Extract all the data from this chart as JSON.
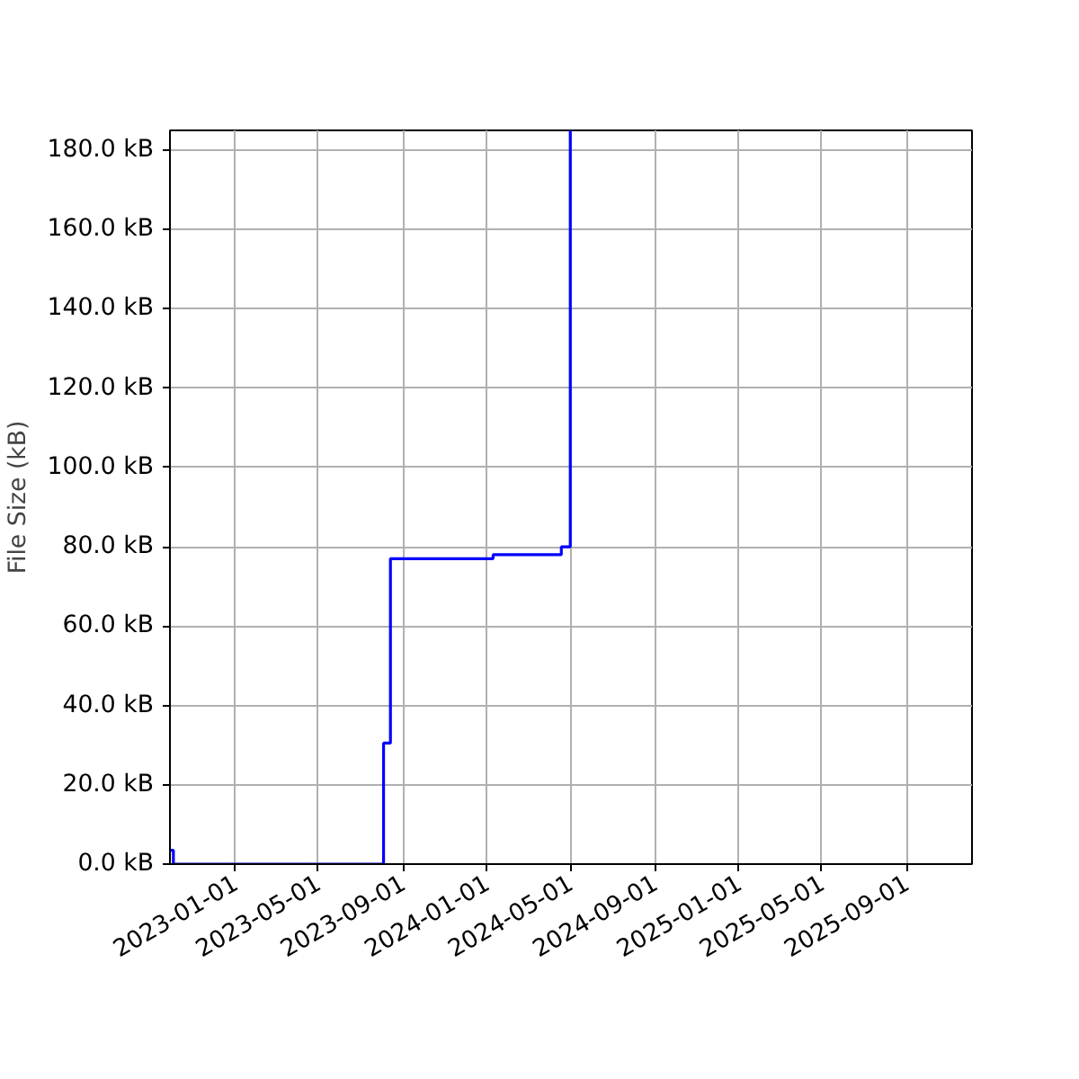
{
  "chart_data": {
    "type": "step",
    "ylabel": "File Size (kB)",
    "x": [
      "2022-09-28",
      "2022-10-03",
      "2023-08-04",
      "2023-08-14",
      "2024-01-10",
      "2024-04-18",
      "2024-05-01"
    ],
    "series": [
      {
        "color": "#0000ff",
        "values": [
          3.5,
          0,
          30.5,
          77,
          78,
          80,
          185
        ]
      }
    ],
    "xlim": [
      "2022-09-28",
      "2025-12-05"
    ],
    "xticks": [
      "2023-01-01",
      "2023-05-01",
      "2023-09-01",
      "2024-01-01",
      "2024-05-01",
      "2024-09-01",
      "2025-01-01",
      "2025-05-01",
      "2025-09-01"
    ],
    "ylim": [
      0,
      185
    ],
    "yticks": [
      {
        "value": 0,
        "label": "0.0 kB"
      },
      {
        "value": 20,
        "label": "20.0 kB"
      },
      {
        "value": 40,
        "label": "40.0 kB"
      },
      {
        "value": 60,
        "label": "60.0 kB"
      },
      {
        "value": 80,
        "label": "80.0 kB"
      },
      {
        "value": 100,
        "label": "100.0 kB"
      },
      {
        "value": 120,
        "label": "120.0 kB"
      },
      {
        "value": 140,
        "label": "140.0 kB"
      },
      {
        "value": 160,
        "label": "160.0 kB"
      },
      {
        "value": 180,
        "label": "180.0 kB"
      }
    ],
    "grid": true,
    "line_style": "solid",
    "marker": "none"
  }
}
